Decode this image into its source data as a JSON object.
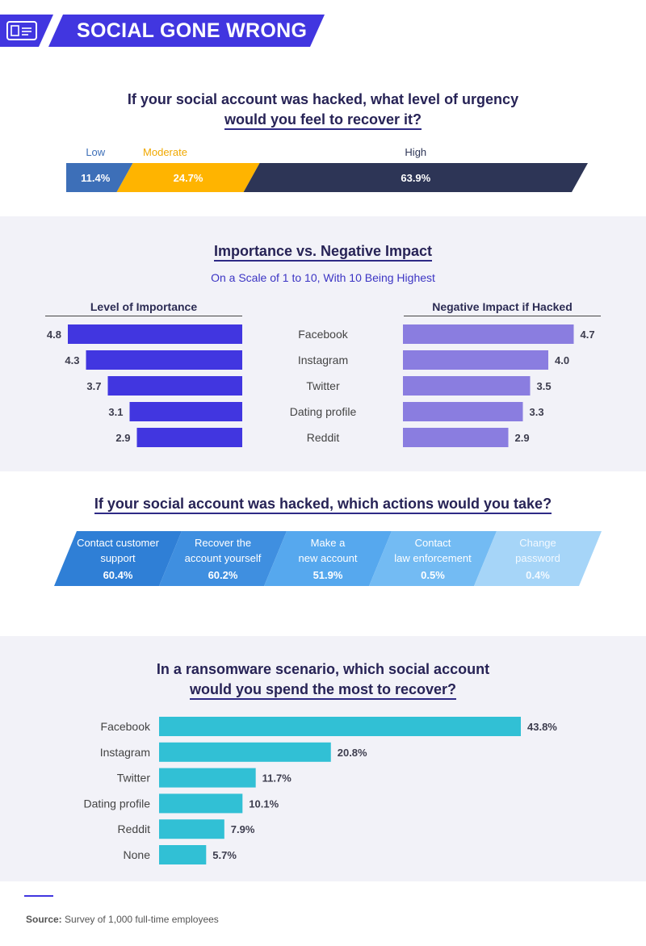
{
  "header": {
    "title": "SOCIAL GONE WRONG",
    "icon": "id-card-icon"
  },
  "colors": {
    "navy": "#2d3556",
    "brand": "#4136e0",
    "lavender": "#8a7de0",
    "teal": "#31c0d5",
    "yellow": "#ffb400",
    "blue": "#3d6fb8"
  },
  "urgency": {
    "title_line1": "If your social account was hacked, what level of urgency",
    "title_line2": "would you feel to recover it?",
    "chart_title": "level of urgency to recover a hacked social account"
  },
  "importance": {
    "title": "Importance vs. Negative Impact",
    "subtitle": "On a Scale of 1 to 10, With 10 Being Highest",
    "left_header": "Level of Importance",
    "right_header": "Negative Impact if Hacked"
  },
  "actions": {
    "title": "If your social account was hacked, which actions would you take?"
  },
  "ransom": {
    "title_line1": "In a ransomware scenario, which social account",
    "title_line2": "would you spend the most to recover?"
  },
  "source": {
    "label": "Source:",
    "text": "Survey of 1,000 full-time employees"
  },
  "chart_data": [
    {
      "type": "bar",
      "title": "If your social account was hacked, what level of urgency would you feel to recover it?",
      "categories": [
        "Low",
        "Moderate",
        "High"
      ],
      "values": [
        11.4,
        24.7,
        63.9
      ],
      "labels": [
        "11.4%",
        "24.7%",
        "63.9%"
      ],
      "stacked": true
    },
    {
      "type": "bar",
      "title": "Importance vs. Negative Impact",
      "categories": [
        "Facebook",
        "Instagram",
        "Twitter",
        "Dating profile",
        "Reddit"
      ],
      "series": [
        {
          "name": "Level of Importance",
          "values": [
            4.8,
            4.3,
            3.7,
            3.1,
            2.9
          ]
        },
        {
          "name": "Negative Impact if Hacked",
          "values": [
            4.7,
            4.0,
            3.5,
            3.3,
            2.9
          ]
        }
      ],
      "xlim": [
        0,
        10
      ]
    },
    {
      "type": "bar",
      "title": "If your social account was hacked, which actions would you take?",
      "items": [
        {
          "line1": "Contact customer",
          "line2": "support",
          "value": 60.4,
          "label": "60.4%"
        },
        {
          "line1": "Recover the",
          "line2": "account yourself",
          "value": 60.2,
          "label": "60.2%"
        },
        {
          "line1": "Make a",
          "line2": "new account",
          "value": 51.9,
          "label": "51.9%"
        },
        {
          "line1": "Contact",
          "line2": "law enforcement",
          "value": 0.5,
          "label": "0.5%"
        },
        {
          "line1": "Change",
          "line2": "password",
          "value": 0.4,
          "label": "0.4%"
        }
      ]
    },
    {
      "type": "bar",
      "title": "In a ransomware scenario, which social account would you spend the most to recover?",
      "categories": [
        "Facebook",
        "Instagram",
        "Twitter",
        "Dating profile",
        "Reddit",
        "None"
      ],
      "values": [
        43.8,
        20.8,
        11.7,
        10.1,
        7.9,
        5.7
      ],
      "labels": [
        "43.8%",
        "20.8%",
        "11.7%",
        "10.1%",
        "7.9%",
        "5.7%"
      ]
    }
  ]
}
